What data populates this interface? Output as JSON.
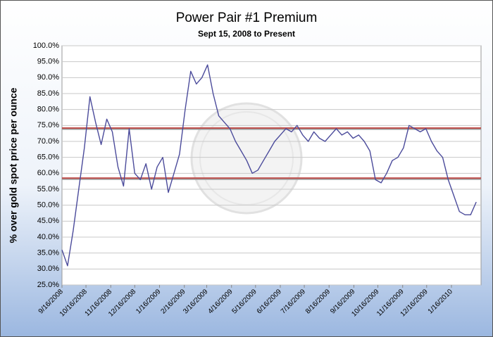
{
  "chart_data": {
    "type": "line",
    "title": "Power Pair #1 Premium",
    "subtitle": "Sept 15, 2008 to Present",
    "y_label": "% over gold spot price per ounce",
    "x": [
      "9/16/2008",
      "9/23/2008",
      "9/30/2008",
      "10/7/2008",
      "10/14/2008",
      "10/21/2008",
      "10/28/2008",
      "11/4/2008",
      "11/11/2008",
      "11/18/2008",
      "11/25/2008",
      "12/2/2008",
      "12/9/2008",
      "12/16/2008",
      "12/23/2008",
      "12/30/2008",
      "1/6/2009",
      "1/13/2009",
      "1/20/2009",
      "1/27/2009",
      "2/3/2009",
      "2/10/2009",
      "2/17/2009",
      "2/24/2009",
      "3/3/2009",
      "3/10/2009",
      "3/17/2009",
      "3/24/2009",
      "3/31/2009",
      "4/7/2009",
      "4/14/2009",
      "4/21/2009",
      "4/28/2009",
      "5/5/2009",
      "5/12/2009",
      "5/19/2009",
      "5/26/2009",
      "6/2/2009",
      "6/9/2009",
      "6/16/2009",
      "6/23/2009",
      "6/30/2009",
      "7/7/2009",
      "7/14/2009",
      "7/21/2009",
      "7/28/2009",
      "8/4/2009",
      "8/11/2009",
      "8/18/2009",
      "8/25/2009",
      "9/1/2009",
      "9/8/2009",
      "9/15/2009",
      "9/22/2009",
      "9/29/2009",
      "10/6/2009",
      "10/13/2009",
      "10/20/2009",
      "10/27/2009",
      "11/3/2009",
      "11/10/2009",
      "11/17/2009",
      "11/24/2009",
      "12/1/2009",
      "12/8/2009",
      "12/15/2009",
      "12/22/2009",
      "12/29/2009",
      "1/5/2010",
      "1/12/2010",
      "1/19/2010",
      "1/26/2010",
      "2/2/2010",
      "2/9/2010",
      "2/16/2010"
    ],
    "series": [
      {
        "name": "Premium",
        "color": "#4b4b9b",
        "values": [
          36,
          31,
          42,
          55,
          68,
          84,
          76,
          69,
          77,
          73,
          62,
          56,
          74,
          60,
          58,
          63,
          55,
          62,
          65,
          54,
          60,
          66,
          80,
          92,
          88,
          90,
          94,
          85,
          78,
          76,
          74,
          70,
          67,
          64,
          60,
          61,
          64,
          67,
          70,
          72,
          74,
          73,
          75,
          72,
          70,
          73,
          71,
          70,
          72,
          74,
          72,
          73,
          71,
          72,
          70,
          67,
          58,
          57,
          60,
          64,
          65,
          68,
          75,
          74,
          73,
          74,
          70,
          67,
          65,
          58,
          53,
          48,
          47,
          47,
          51
        ]
      }
    ],
    "reference_lines": {
      "values": [
        74.2,
        58.5
      ],
      "color": "#c0504d"
    },
    "xlim": [
      "9/16/2008",
      "2/22/2010"
    ],
    "xticks": [
      "9/16/2008",
      "10/16/2008",
      "11/16/2008",
      "12/16/2008",
      "1/16/2009",
      "2/16/2009",
      "3/16/2009",
      "4/16/2009",
      "5/16/2009",
      "6/16/2009",
      "7/16/2009",
      "8/16/2009",
      "9/16/2009",
      "10/16/2009",
      "11/16/2009",
      "12/16/2009",
      "1/16/2010"
    ],
    "ylim": [
      25,
      100
    ],
    "yticks": [
      {
        "value": 25,
        "label": "25.0%"
      },
      {
        "value": 30,
        "label": "30.0%"
      },
      {
        "value": 35,
        "label": "35.0%"
      },
      {
        "value": 40,
        "label": "40.0%"
      },
      {
        "value": 45,
        "label": "45.0%"
      },
      {
        "value": 50,
        "label": "50.0%"
      },
      {
        "value": 55,
        "label": "55.0%"
      },
      {
        "value": 60,
        "label": "60.0%"
      },
      {
        "value": 65,
        "label": "65.0%"
      },
      {
        "value": 70,
        "label": "70.0%"
      },
      {
        "value": 75,
        "label": "75.0%"
      },
      {
        "value": 80,
        "label": "80.0%"
      },
      {
        "value": 85,
        "label": "85.0%"
      },
      {
        "value": 90,
        "label": "90.0%"
      },
      {
        "value": 95,
        "label": "95.0%"
      },
      {
        "value": 100,
        "label": "100.0%"
      }
    ],
    "grid": true
  }
}
